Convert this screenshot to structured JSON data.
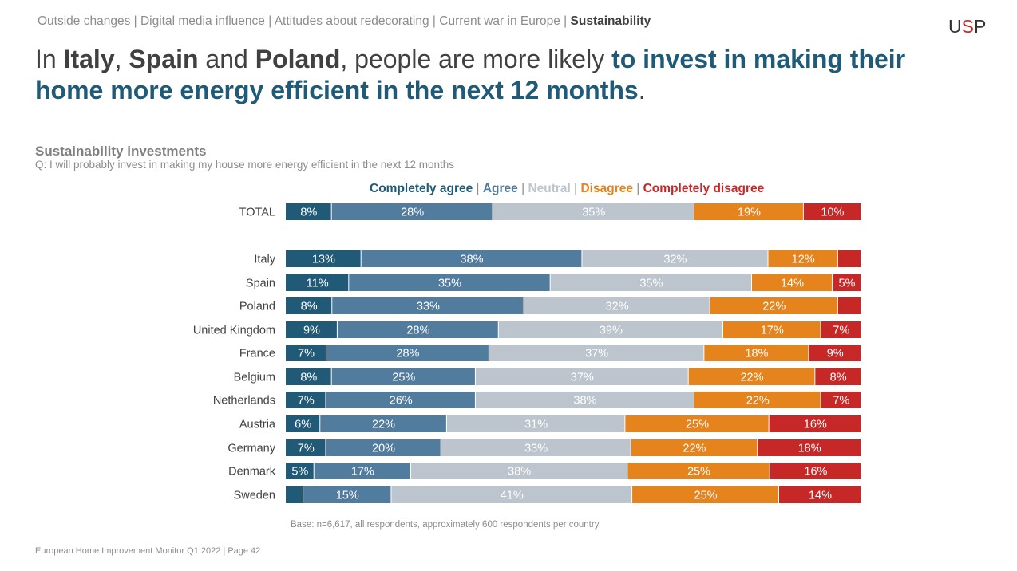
{
  "breadcrumb": {
    "items": [
      "Outside changes",
      "Digital media influence",
      "Attitudes about redecorating",
      "Current war in Europe"
    ],
    "active": "Sustainability"
  },
  "logo": {
    "prefix": "U",
    "s": "S",
    "suffix": "P"
  },
  "headline": {
    "p1": "In ",
    "b1": "Italy",
    "p2": ", ",
    "b2": "Spain",
    "p3": " and ",
    "b3": "Poland",
    "p4": ", people are more likely ",
    "hl": "to invest in making their home more energy efficient in the next 12 months",
    "p5": "."
  },
  "colors": {
    "completely_agree": "#215a77",
    "agree": "#527c9e",
    "neutral": "#bcc5cd",
    "disagree": "#e5831d",
    "completely_disagree": "#c62828"
  },
  "footer": {
    "base": "Base: n=6,617, all respondents, approximately 600 respondents per country",
    "page": "European Home Improvement Monitor Q1 2022 | Page 42"
  },
  "chart_data": {
    "type": "bar",
    "orientation": "horizontal",
    "stacked": true,
    "percent": true,
    "title": "Sustainability investments",
    "subtitle": "Q: I will probably invest in making my house more energy efficient in the next 12 months",
    "categories": [
      "TOTAL",
      "Italy",
      "Spain",
      "Poland",
      "United Kingdom",
      "France",
      "Belgium",
      "Netherlands",
      "Austria",
      "Germany",
      "Denmark",
      "Sweden"
    ],
    "series": [
      {
        "name": "Completely agree",
        "color": "#215a77",
        "text_color": "#ffffff",
        "values": [
          8,
          13,
          11,
          8,
          9,
          7,
          8,
          7,
          6,
          7,
          5,
          3
        ],
        "labels": [
          "8%",
          "13%",
          "11%",
          "8%",
          "9%",
          "7%",
          "8%",
          "7%",
          "6%",
          "7%",
          "5%",
          ""
        ]
      },
      {
        "name": "Agree",
        "color": "#527c9e",
        "text_color": "#ffffff",
        "values": [
          28,
          38,
          35,
          33,
          28,
          28,
          25,
          26,
          22,
          20,
          17,
          15
        ],
        "labels": [
          "28%",
          "38%",
          "35%",
          "33%",
          "28%",
          "28%",
          "25%",
          "26%",
          "22%",
          "20%",
          "17%",
          "15%"
        ]
      },
      {
        "name": "Neutral",
        "color": "#bcc5cd",
        "text_color": "#ffffff",
        "values": [
          35,
          32,
          35,
          32,
          39,
          37,
          37,
          38,
          31,
          33,
          38,
          41
        ],
        "labels": [
          "35%",
          "32%",
          "35%",
          "32%",
          "39%",
          "37%",
          "37%",
          "38%",
          "31%",
          "33%",
          "38%",
          "41%"
        ]
      },
      {
        "name": "Disagree",
        "color": "#e5831d",
        "text_color": "#ffffff",
        "values": [
          19,
          12,
          14,
          22,
          17,
          18,
          22,
          22,
          25,
          22,
          25,
          25
        ],
        "labels": [
          "19%",
          "12%",
          "14%",
          "22%",
          "17%",
          "18%",
          "22%",
          "22%",
          "25%",
          "22%",
          "25%",
          "25%"
        ]
      },
      {
        "name": "Completely disagree",
        "color": "#c62828",
        "text_color": "#ffffff",
        "values": [
          10,
          4,
          5,
          4,
          7,
          9,
          8,
          7,
          16,
          18,
          16,
          14
        ],
        "labels": [
          "10%",
          "",
          "5%",
          "",
          "7%",
          "9%",
          "8%",
          "7%",
          "16%",
          "18%",
          "16%",
          "14%"
        ]
      }
    ],
    "xlim": [
      0,
      100
    ],
    "legend": "top",
    "grid": false
  }
}
